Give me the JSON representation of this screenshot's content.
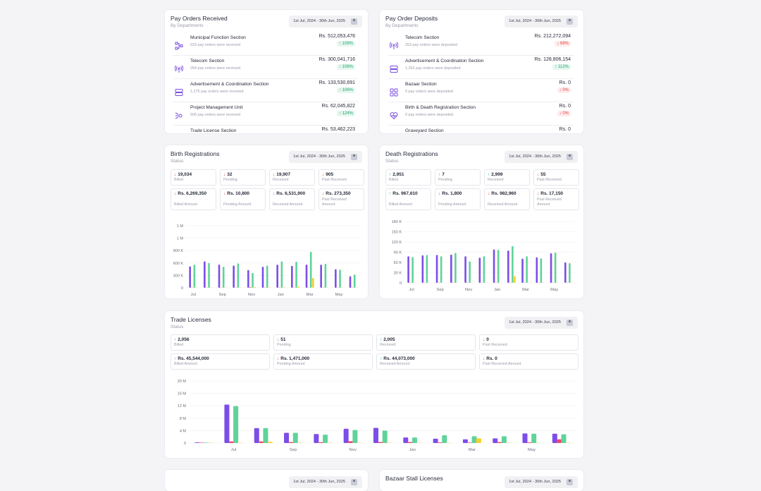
{
  "date_range": "1st Jul, 2024 - 30th Jun, 2025",
  "pay_orders_received": {
    "title": "Pay Orders Received",
    "subtitle": "By Departments",
    "rows": [
      {
        "name": "Municipal Function Section",
        "desc": "633 pay orders were received",
        "amount": "Rs. 512,053,476",
        "change": "109%",
        "dir": "up",
        "icon": "network-icon"
      },
      {
        "name": "Telecom Section",
        "desc": "264 pay orders were received",
        "amount": "Rs. 300,041,716",
        "change": "106%",
        "dir": "up",
        "icon": "antenna-icon"
      },
      {
        "name": "Advertisement & Coordination Section",
        "desc": "1,275 pay orders were received",
        "amount": "Rs. 133,530,691",
        "change": "106%",
        "dir": "up",
        "icon": "server-icon"
      },
      {
        "name": "Project Management Unit",
        "desc": "506 pay orders were received",
        "amount": "Rs. 62,045,822",
        "change": "124%",
        "dir": "up",
        "icon": "project-icon"
      },
      {
        "name": "Trade License Section",
        "desc": "",
        "amount": "Rs. 53,462,223",
        "change": "",
        "dir": "up",
        "icon": "license-icon"
      }
    ]
  },
  "pay_order_deposits": {
    "title": "Pay Order Deposits",
    "subtitle": "By Departments",
    "rows": [
      {
        "name": "Telecom Section",
        "desc": "253 pay orders were deposited",
        "amount": "Rs. 212,272,094",
        "change": "69%",
        "dir": "dn",
        "icon": "antenna-icon"
      },
      {
        "name": "Advertisement & Coordination Section",
        "desc": "1,262 pay orders were deposited",
        "amount": "Rs. 128,806,154",
        "change": "112%",
        "dir": "up",
        "icon": "server-icon"
      },
      {
        "name": "Bazaar Section",
        "desc": "0 pay orders were deposited",
        "amount": "Rs. 0",
        "change": "0%",
        "dir": "dn",
        "icon": "grid-icon"
      },
      {
        "name": "Birth & Death Registration Section",
        "desc": "0 pay orders were deposited",
        "amount": "Rs. 0",
        "change": "0%",
        "dir": "dn",
        "icon": "heart-icon"
      },
      {
        "name": "Graveyard Section",
        "desc": "",
        "amount": "Rs. 0",
        "change": "",
        "dir": "dn",
        "icon": "grave-icon"
      }
    ]
  },
  "birth": {
    "title": "Birth Registrations",
    "subtitle": "Status",
    "stats": [
      {
        "value": "19,034",
        "label": "Billed",
        "dir": "dn"
      },
      {
        "value": "32",
        "label": "Pending",
        "dir": "dn"
      },
      {
        "value": "19,907",
        "label": "Received",
        "dir": "dn"
      },
      {
        "value": "905",
        "label": "Past Received",
        "dir": "dn"
      },
      {
        "value": "Rs. 6,269,350",
        "label": "Billed Amount",
        "dir": "dn"
      },
      {
        "value": "Rs. 10,800",
        "label": "Pending Amount",
        "dir": "dn"
      },
      {
        "value": "Rs. 6,531,900",
        "label": "Received Amount",
        "dir": "dn"
      },
      {
        "value": "Rs. 273,350",
        "label": "Past Received Amount",
        "dir": "dn"
      }
    ]
  },
  "death": {
    "title": "Death Registrations",
    "subtitle": "Status",
    "stats": [
      {
        "value": "2,951",
        "label": "Billed",
        "dir": "up"
      },
      {
        "value": "7",
        "label": "Pending",
        "dir": "up"
      },
      {
        "value": "2,999",
        "label": "Received",
        "dir": "up"
      },
      {
        "value": "55",
        "label": "Past Received",
        "dir": "dn"
      },
      {
        "value": "Rs. 967,610",
        "label": "Billed Amount",
        "dir": "up"
      },
      {
        "value": "Rs. 1,800",
        "label": "Pending Amount",
        "dir": "dn"
      },
      {
        "value": "Rs. 982,960",
        "label": "Received Amount",
        "dir": "dn"
      },
      {
        "value": "Rs. 17,150",
        "label": "Past Received Amount",
        "dir": "dn"
      }
    ]
  },
  "trade": {
    "title": "Trade Licenses",
    "subtitle": "Status",
    "stats": [
      {
        "value": "2,056",
        "label": "Billed",
        "dir": "up"
      },
      {
        "value": "51",
        "label": "Pending",
        "dir": "dn"
      },
      {
        "value": "2,005",
        "label": "Received",
        "dir": "up"
      },
      {
        "value": "0",
        "label": "Past Received",
        "dir": "dn"
      },
      {
        "value": "Rs. 45,544,000",
        "label": "Billed Amount",
        "dir": "up"
      },
      {
        "value": "Rs. 1,471,000",
        "label": "Pending Amount",
        "dir": "dn"
      },
      {
        "value": "Rs. 44,073,000",
        "label": "Received Amount",
        "dir": "up"
      },
      {
        "value": "Rs. 0",
        "label": "Past Received Amount",
        "dir": "dn"
      }
    ]
  },
  "bottom_left": {
    "title": "",
    "subtitle": ""
  },
  "bazaar": {
    "title": "Bazaar Stall Licenses"
  },
  "colors": {
    "billed": "#7c4de8",
    "received": "#5fd39a",
    "pending": "#f2466a",
    "past": "#f8cf2a"
  },
  "chart_data": [
    {
      "type": "bar",
      "title": "Birth Registrations",
      "yticks": [
        "1 M",
        "1 M",
        "900 K",
        "600 K",
        "300 K",
        "0"
      ],
      "ylim": [
        0,
        1500000
      ],
      "categories": [
        "Jul",
        "Aug",
        "Sep",
        "Oct",
        "Nov",
        "Dec",
        "Jan",
        "Feb",
        "Mar",
        "Apr",
        "May",
        "Jun"
      ],
      "xlabels": [
        "Jul",
        "Sep",
        "Nov",
        "Jan",
        "Mar",
        "May"
      ],
      "series": [
        {
          "key": "billed",
          "values": [
            520000,
            640000,
            560000,
            540000,
            430000,
            510000,
            560000,
            530000,
            560000,
            560000,
            450000,
            280000
          ]
        },
        {
          "key": "pending",
          "values": [
            0,
            0,
            0,
            0,
            15000,
            0,
            0,
            0,
            0,
            0,
            0,
            0
          ]
        },
        {
          "key": "received",
          "values": [
            560000,
            600000,
            510000,
            590000,
            360000,
            540000,
            640000,
            630000,
            870000,
            580000,
            440000,
            320000
          ]
        },
        {
          "key": "past",
          "values": [
            0,
            0,
            0,
            0,
            20000,
            10000,
            15000,
            30000,
            240000,
            0,
            0,
            0
          ]
        }
      ]
    },
    {
      "type": "bar",
      "title": "Death Registrations",
      "yticks": [
        "180 K",
        "150 K",
        "120 K",
        "90 K",
        "60 K",
        "30 K",
        "0"
      ],
      "ylim": [
        0,
        180000
      ],
      "categories": [
        "Jul",
        "Aug",
        "Sep",
        "Oct",
        "Nov",
        "Dec",
        "Jan",
        "Feb",
        "Mar",
        "Apr",
        "May",
        "Jun"
      ],
      "xlabels": [
        "Jul",
        "Sep",
        "Nov",
        "Jan",
        "Mar",
        "May"
      ],
      "series": [
        {
          "key": "billed",
          "values": [
            78000,
            81000,
            82000,
            83000,
            78000,
            74000,
            98000,
            95000,
            71000,
            75000,
            87000,
            60000
          ]
        },
        {
          "key": "pending",
          "values": [
            0,
            0,
            0,
            0,
            0,
            0,
            0,
            0,
            0,
            0,
            0,
            0
          ]
        },
        {
          "key": "received",
          "values": [
            76000,
            82000,
            78000,
            88000,
            63000,
            78000,
            97000,
            108000,
            78000,
            72000,
            89000,
            58000
          ]
        },
        {
          "key": "past",
          "values": [
            0,
            0,
            0,
            0,
            0,
            0,
            0,
            20000,
            0,
            0,
            0,
            0
          ]
        }
      ]
    },
    {
      "type": "bar",
      "title": "Trade Licenses",
      "yticks": [
        "20 M",
        "16 M",
        "12 M",
        "8 M",
        "4 M",
        "0"
      ],
      "ylim": [
        0,
        20000000
      ],
      "categories": [
        "Jun",
        "Jul",
        "Aug",
        "Sep",
        "Oct",
        "Nov",
        "Dec",
        "Jan",
        "Feb",
        "Mar",
        "Apr",
        "May",
        "Jun"
      ],
      "xlabels": [
        "Jul",
        "Sep",
        "Nov",
        "Jan",
        "Mar",
        "May"
      ],
      "xlabel_positions": [
        1,
        3,
        5,
        7,
        9,
        11
      ],
      "series": [
        {
          "key": "billed",
          "values": [
            200000,
            12400000,
            4800000,
            3300000,
            2900000,
            4600000,
            4900000,
            1800000,
            1400000,
            1200000,
            1500000,
            3100000,
            3000000
          ]
        },
        {
          "key": "pending",
          "values": [
            150000,
            500000,
            500000,
            300000,
            250000,
            600000,
            350000,
            300000,
            200000,
            150000,
            300000,
            200000,
            1200000
          ]
        },
        {
          "key": "received",
          "values": [
            150000,
            11900000,
            4800000,
            3300000,
            2700000,
            4200000,
            4000000,
            1800000,
            2500000,
            2200000,
            2200000,
            3000000,
            2800000
          ]
        },
        {
          "key": "past",
          "values": [
            0,
            0,
            400000,
            0,
            0,
            0,
            0,
            0,
            0,
            1500000,
            0,
            0,
            0
          ]
        }
      ]
    }
  ]
}
